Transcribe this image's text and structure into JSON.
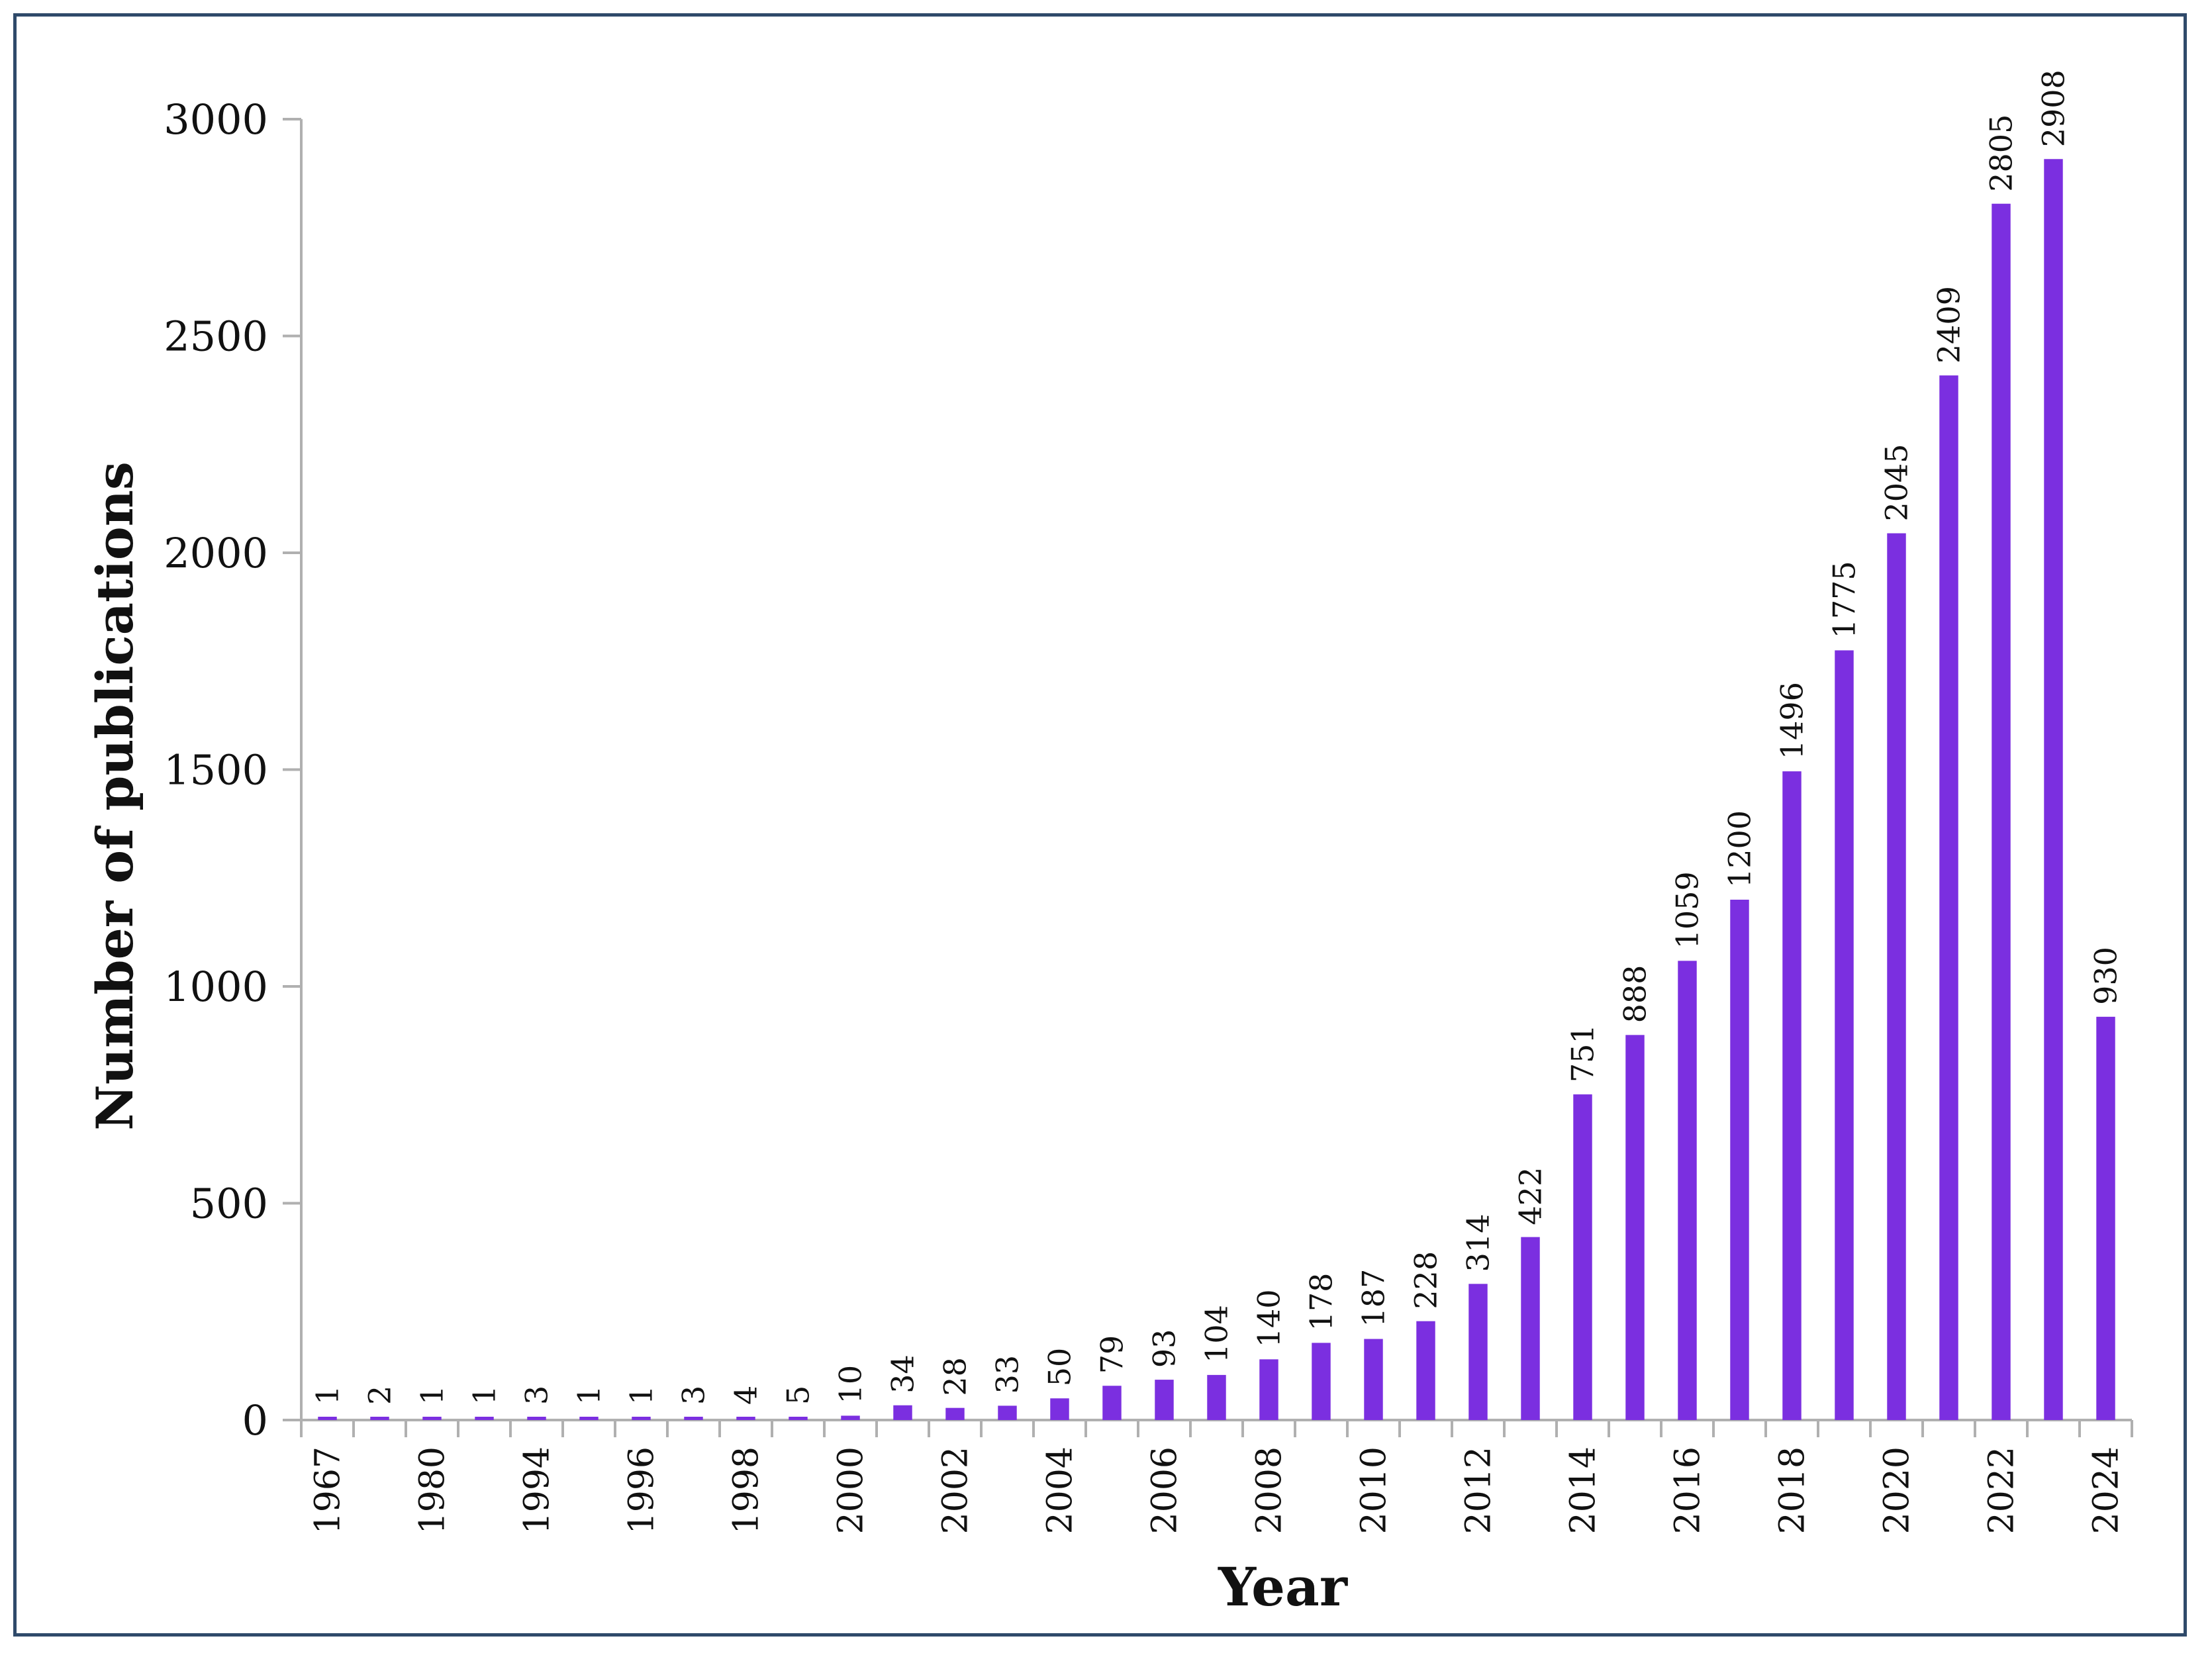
{
  "chart_data": {
    "type": "bar",
    "title": "",
    "xlabel": "Year",
    "ylabel": "Number of publications",
    "ylim": [
      0,
      3000
    ],
    "yticks": [
      0,
      500,
      1000,
      1500,
      2000,
      2500,
      3000
    ],
    "categories": [
      "1967",
      "",
      "1980",
      "",
      "1994",
      "",
      "1996",
      "",
      "1998",
      "",
      "2000",
      "",
      "2002",
      "",
      "2004",
      "",
      "2006",
      "",
      "2008",
      "",
      "2010",
      "",
      "2012",
      "",
      "2014",
      "",
      "2016",
      "",
      "2018",
      "",
      "2020",
      "",
      "2022",
      "",
      "2024"
    ],
    "values": [
      1,
      2,
      1,
      1,
      3,
      1,
      1,
      3,
      4,
      5,
      10,
      34,
      28,
      33,
      50,
      79,
      93,
      104,
      140,
      178,
      187,
      228,
      314,
      422,
      751,
      888,
      1059,
      1200,
      1496,
      1775,
      2045,
      2409,
      2805,
      2908,
      930
    ],
    "data_labels": [
      "1",
      "2",
      "1",
      "1",
      "3",
      "1",
      "1",
      "3",
      "4",
      "5",
      "10",
      "34",
      "28",
      "33",
      "50",
      "79",
      "93",
      "104",
      "140",
      "178",
      "187",
      "228",
      "314",
      "422",
      "751",
      "888",
      "1059",
      "1200",
      "1496",
      "1775",
      "2045",
      "2409",
      "2805",
      "2908",
      "930"
    ],
    "bar_color": "#7b2fe0",
    "grid": false,
    "legend": "none"
  }
}
